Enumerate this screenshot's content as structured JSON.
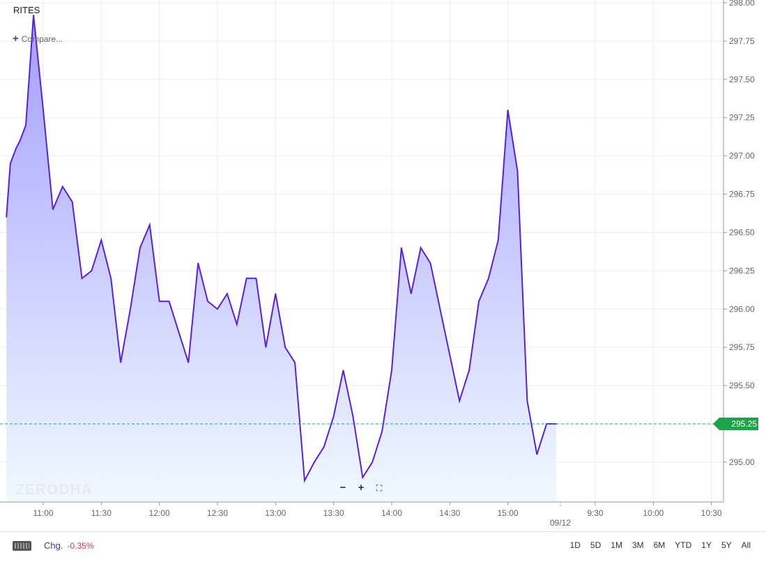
{
  "header": {
    "symbol": "RITES",
    "compare_label": "Compare..."
  },
  "watermark": "ZERODHA",
  "zoom": {
    "minus": "−",
    "plus": "+",
    "fullscreen": "⛶"
  },
  "bottom": {
    "chg_label": "Chg.",
    "chg_value": "-0.35%",
    "ranges": [
      "1D",
      "5D",
      "1M",
      "3M",
      "6M",
      "YTD",
      "1Y",
      "5Y",
      "All"
    ]
  },
  "colors": {
    "line": "#5a1fe0",
    "last_price": "#1ea349",
    "change_negative": "#e0314a",
    "accent": "#3a3aa8"
  },
  "chart_data": {
    "type": "area",
    "last_price_label": "295.25",
    "date_marker": "09/12",
    "ylim": [
      294.74,
      298.0
    ],
    "y_ticks": [
      295.0,
      295.25,
      295.5,
      295.75,
      296.0,
      296.25,
      296.5,
      296.75,
      297.0,
      297.25,
      297.5,
      297.75,
      298.0
    ],
    "y_tick_labels": [
      "295.00",
      "295.25",
      "295.50",
      "295.75",
      "296.00",
      "296.25",
      "296.50",
      "296.75",
      "297.00",
      "297.25",
      "297.50",
      "297.75",
      "298.00"
    ],
    "x_axis_start": "10:41",
    "x_axis_end": "10:41",
    "x_ticks": [
      {
        "t": "11:00",
        "label": "11:00"
      },
      {
        "t": "11:30",
        "label": "11:30"
      },
      {
        "t": "12:00",
        "label": "12:00"
      },
      {
        "t": "12:30",
        "label": "12:30"
      },
      {
        "t": "13:00",
        "label": "13:00"
      },
      {
        "t": "13:30",
        "label": "13:30"
      },
      {
        "t": "14:00",
        "label": "14:00"
      },
      {
        "t": "14:30",
        "label": "14:30"
      },
      {
        "t": "15:00",
        "label": "15:00"
      },
      {
        "t": "09:12",
        "label": "09/12",
        "next_day": true
      },
      {
        "t": "09:30",
        "label": "9:30",
        "next_day": true
      },
      {
        "t": "10:00",
        "label": "10:00",
        "next_day": true
      },
      {
        "t": "10:30",
        "label": "10:30",
        "next_day": true
      }
    ],
    "series": [
      {
        "x": [
          "10:41",
          "10:43",
          "10:46",
          "10:48",
          "10:51",
          "10:55",
          "11:00",
          "11:05",
          "11:10",
          "11:15",
          "11:20",
          "11:25",
          "11:30",
          "11:35",
          "11:40",
          "11:45",
          "11:50",
          "11:55",
          "12:00",
          "12:05",
          "12:10",
          "12:15",
          "12:20",
          "12:25",
          "12:30",
          "12:35",
          "12:40",
          "12:45",
          "12:50",
          "12:55",
          "13:00",
          "13:05",
          "13:10",
          "13:15",
          "13:20",
          "13:25",
          "13:30",
          "13:35",
          "13:40",
          "13:45",
          "13:50",
          "13:55",
          "14:00",
          "14:05",
          "14:10",
          "14:15",
          "14:20",
          "14:25",
          "14:30",
          "14:35",
          "14:40",
          "14:45",
          "14:50",
          "14:55",
          "15:00",
          "15:05",
          "15:10",
          "15:15",
          "15:20",
          "15:25"
        ],
        "y": [
          296.6,
          296.95,
          297.05,
          297.1,
          297.2,
          297.92,
          297.3,
          296.65,
          296.8,
          296.7,
          296.2,
          296.25,
          296.45,
          296.2,
          295.65,
          296.0,
          296.4,
          296.55,
          296.05,
          296.05,
          295.85,
          295.65,
          296.3,
          296.05,
          296.0,
          296.1,
          295.9,
          296.2,
          296.2,
          295.75,
          296.1,
          295.75,
          295.65,
          294.88,
          295.0,
          295.1,
          295.3,
          295.6,
          295.3,
          294.9,
          295.0,
          295.2,
          295.6,
          296.4,
          296.1,
          296.4,
          296.3,
          296.0,
          295.7,
          295.4,
          295.6,
          296.05,
          296.2,
          296.45,
          297.3,
          296.9,
          295.4,
          295.05,
          295.25,
          295.25
        ]
      }
    ]
  }
}
